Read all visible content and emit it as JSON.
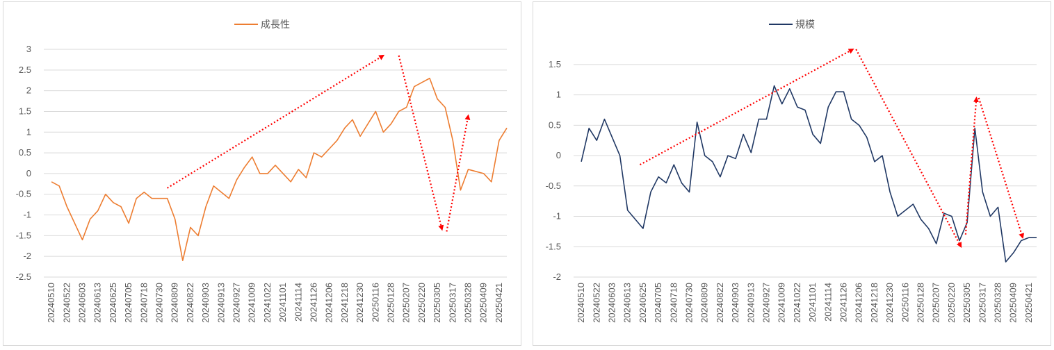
{
  "colors": {
    "arrow": "#ff0000",
    "grid": "#d9d9d9",
    "axis_text": "#595959"
  },
  "chart_data": [
    {
      "type": "line",
      "series": [
        {
          "name": "成長性",
          "color": "#ed7d31"
        }
      ],
      "legend": "top-center",
      "grid": true,
      "ylim": [
        -2.5,
        3
      ],
      "yticks": [
        "3",
        "2.5",
        "2",
        "1.5",
        "1",
        "0.5",
        "0",
        "-0.5",
        "-1",
        "-1.5",
        "-2",
        "-2.5"
      ],
      "xticks": [
        "20240510",
        "20240522",
        "20240603",
        "20240613",
        "20240625",
        "20240705",
        "20240718",
        "20240730",
        "20240809",
        "20240822",
        "20240903",
        "20240913",
        "20240927",
        "20241009",
        "20241022",
        "20241101",
        "20241114",
        "20241126",
        "20241206",
        "20241218",
        "20241230",
        "20250116",
        "20250128",
        "20250207",
        "20250220",
        "20250305",
        "20250317",
        "20250328",
        "20250409",
        "20250421"
      ],
      "x": [
        0,
        0.5,
        1,
        1.5,
        2,
        2.5,
        3,
        3.5,
        4,
        4.5,
        5,
        5.5,
        6,
        6.5,
        7,
        7.5,
        8,
        8.5,
        9,
        9.5,
        10,
        10.5,
        11,
        11.5,
        12,
        12.5,
        13,
        13.5,
        14,
        14.5,
        15,
        15.5,
        16,
        16.5,
        17,
        17.5,
        18,
        18.5,
        19,
        19.5,
        20,
        20.5,
        21,
        21.5,
        22,
        22.5,
        23,
        23.5,
        24,
        24.5,
        25,
        25.5,
        26,
        26.5,
        27,
        27.5,
        28,
        28.5,
        29,
        29.5
      ],
      "y": [
        -0.2,
        -0.3,
        -0.8,
        -1.2,
        -1.6,
        -1.1,
        -0.9,
        -0.5,
        -0.7,
        -0.8,
        -1.2,
        -0.6,
        -0.45,
        -0.6,
        -0.6,
        -0.6,
        -1.1,
        -2.1,
        -1.3,
        -1.5,
        -0.8,
        -0.3,
        -0.45,
        -0.6,
        -0.15,
        0.15,
        0.4,
        0.0,
        0.0,
        0.2,
        0.0,
        -0.2,
        0.1,
        -0.1,
        0.5,
        0.4,
        0.6,
        0.8,
        1.1,
        1.3,
        0.9,
        1.2,
        1.5,
        1.0,
        1.2,
        1.5,
        1.6,
        2.1,
        2.2,
        2.3,
        1.8,
        1.6,
        0.8,
        -0.4,
        0.1,
        0.05,
        0.0,
        -0.2,
        0.8,
        1.1
      ],
      "arrows": [
        {
          "from": [
            7.5,
            -0.35
          ],
          "to": [
            21.5,
            2.85
          ]
        },
        {
          "from": [
            22.5,
            2.85
          ],
          "to": [
            25.3,
            -1.35
          ]
        },
        {
          "from": [
            25.6,
            -1.4
          ],
          "to": [
            27.0,
            1.4
          ]
        }
      ]
    },
    {
      "type": "line",
      "series": [
        {
          "name": "規模",
          "color": "#203864"
        }
      ],
      "legend": "top-center",
      "grid": true,
      "ylim": [
        -2,
        1.75
      ],
      "yticks": [
        "1.5",
        "1",
        "0.5",
        "0",
        "-0.5",
        "-1",
        "-1.5",
        "-2"
      ],
      "xticks": [
        "20240510",
        "20240522",
        "20240603",
        "20240613",
        "20240625",
        "20240705",
        "20240718",
        "20240730",
        "20240809",
        "20240822",
        "20240903",
        "20240913",
        "20240927",
        "20241009",
        "20241022",
        "20241101",
        "20241114",
        "20241126",
        "20241206",
        "20241218",
        "20241230",
        "20250116",
        "20250128",
        "20250207",
        "20250220",
        "20250305",
        "20250317",
        "20250328",
        "20250409",
        "20250421"
      ],
      "x": [
        0,
        0.5,
        1,
        1.5,
        2,
        2.5,
        3,
        3.5,
        4,
        4.5,
        5,
        5.5,
        6,
        6.5,
        7,
        7.5,
        8,
        8.5,
        9,
        9.5,
        10,
        10.5,
        11,
        11.5,
        12,
        12.5,
        13,
        13.5,
        14,
        14.5,
        15,
        15.5,
        16,
        16.5,
        17,
        17.5,
        18,
        18.5,
        19,
        19.5,
        20,
        20.5,
        21,
        21.5,
        22,
        22.5,
        23,
        23.5,
        24,
        24.5,
        25,
        25.5,
        26,
        26.5,
        27,
        27.5,
        28,
        28.5,
        29,
        29.5
      ],
      "y": [
        -0.1,
        0.45,
        0.25,
        0.6,
        0.3,
        0.0,
        -0.9,
        -1.05,
        -1.2,
        -0.6,
        -0.35,
        -0.45,
        -0.15,
        -0.45,
        -0.6,
        0.55,
        0.0,
        -0.1,
        -0.35,
        0.0,
        -0.05,
        0.35,
        0.05,
        0.6,
        0.6,
        1.15,
        0.85,
        1.1,
        0.8,
        0.75,
        0.35,
        0.2,
        0.8,
        1.05,
        1.05,
        0.6,
        0.5,
        0.3,
        -0.1,
        0.0,
        -0.6,
        -1.0,
        -0.9,
        -0.8,
        -1.05,
        -1.2,
        -1.45,
        -0.95,
        -1.0,
        -1.4,
        -1.1,
        0.45,
        -0.6,
        -1.0,
        -0.85,
        -1.75,
        -1.6,
        -1.4,
        -1.35,
        -1.35
      ],
      "arrows": [
        {
          "from": [
            3.8,
            -0.15
          ],
          "to": [
            17.6,
            1.75
          ]
        },
        {
          "from": [
            17.8,
            1.75
          ],
          "to": [
            24.6,
            -1.5
          ]
        },
        {
          "from": [
            24.9,
            -1.3
          ],
          "to": [
            25.6,
            0.95
          ]
        },
        {
          "from": [
            25.75,
            0.95
          ],
          "to": [
            28.6,
            -1.35
          ]
        }
      ]
    }
  ]
}
